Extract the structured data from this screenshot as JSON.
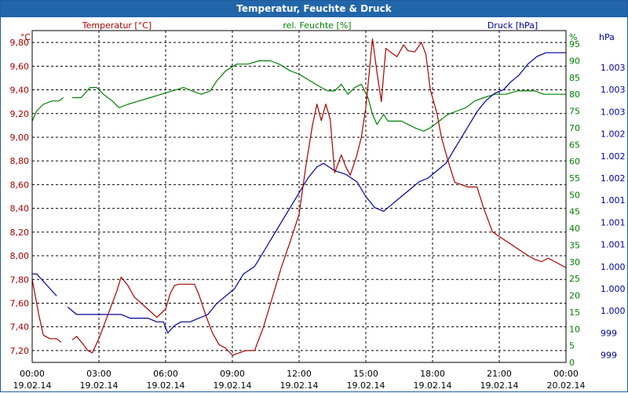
{
  "title": "Temperatur, Feuchte & Druck",
  "colors": {
    "title_bar": "#2266aa",
    "temperature": "#aa0000",
    "humidity": "#008000",
    "pressure": "#000099",
    "grid": "#000000"
  },
  "headers": {
    "temperature_series": "Temperatur [°C]",
    "humidity_series": "rel. Feuchte [%]",
    "pressure_series": "Druck [hPa]",
    "left_unit": "°C",
    "humidity_unit": "%",
    "pressure_unit": "hPa"
  },
  "chart_data": {
    "type": "line",
    "title": "Temperatur, Feuchte & Druck",
    "grid": true,
    "x_ticks": [
      {
        "time": "00:00",
        "date": "19.02.14"
      },
      {
        "time": "03:00",
        "date": "19.02.14"
      },
      {
        "time": "06:00",
        "date": "19.02.14"
      },
      {
        "time": "09:00",
        "date": "19.02.14"
      },
      {
        "time": "12:00",
        "date": "19.02.14"
      },
      {
        "time": "15:00",
        "date": "19.02.14"
      },
      {
        "time": "18:00",
        "date": "19.02.14"
      },
      {
        "time": "21:00",
        "date": "19.02.14"
      },
      {
        "time": "00:00",
        "date": "20.02.14"
      }
    ],
    "xlim_hours": [
      0,
      24
    ],
    "temperature": {
      "label": "Temperatur [°C]",
      "unit": "°C",
      "ylim": [
        7.1,
        9.9
      ],
      "ticks": [
        "7,20",
        "7,40",
        "7,60",
        "7,80",
        "8,00",
        "8,20",
        "8,40",
        "8,60",
        "8,80",
        "9,00",
        "9,20",
        "9,40",
        "9,60",
        "9,80"
      ],
      "tick_values": [
        7.2,
        7.4,
        7.6,
        7.8,
        8.0,
        8.2,
        8.4,
        8.6,
        8.8,
        9.0,
        9.2,
        9.4,
        9.6,
        9.8
      ],
      "segments": [
        [
          [
            0.0,
            7.8
          ],
          [
            0.3,
            7.5
          ],
          [
            0.5,
            7.33
          ],
          [
            0.8,
            7.3
          ],
          [
            1.1,
            7.3
          ],
          [
            1.3,
            7.27
          ]
        ],
        [
          [
            1.8,
            7.29
          ],
          [
            2.0,
            7.32
          ],
          [
            2.3,
            7.25
          ],
          [
            2.5,
            7.2
          ],
          [
            2.7,
            7.18
          ],
          [
            3.0,
            7.3
          ],
          [
            3.3,
            7.45
          ],
          [
            3.6,
            7.6
          ],
          [
            3.8,
            7.7
          ],
          [
            4.0,
            7.82
          ],
          [
            4.3,
            7.75
          ],
          [
            4.6,
            7.65
          ],
          [
            4.9,
            7.6
          ],
          [
            5.2,
            7.55
          ],
          [
            5.6,
            7.48
          ],
          [
            6.0,
            7.55
          ],
          [
            6.2,
            7.68
          ],
          [
            6.4,
            7.75
          ],
          [
            6.6,
            7.76
          ],
          [
            7.0,
            7.76
          ],
          [
            7.3,
            7.76
          ],
          [
            7.5,
            7.67
          ],
          [
            7.8,
            7.5
          ],
          [
            8.1,
            7.35
          ],
          [
            8.4,
            7.25
          ],
          [
            8.7,
            7.22
          ],
          [
            9.0,
            7.16
          ],
          [
            9.3,
            7.18
          ],
          [
            9.6,
            7.2
          ],
          [
            10.0,
            7.2
          ],
          [
            10.4,
            7.4
          ],
          [
            10.8,
            7.65
          ],
          [
            11.2,
            7.9
          ],
          [
            11.6,
            8.12
          ],
          [
            12.0,
            8.35
          ],
          [
            12.3,
            8.75
          ],
          [
            12.6,
            9.1
          ],
          [
            12.8,
            9.28
          ],
          [
            13.0,
            9.14
          ],
          [
            13.2,
            9.28
          ],
          [
            13.4,
            9.15
          ],
          [
            13.6,
            8.7
          ],
          [
            13.9,
            8.85
          ],
          [
            14.1,
            8.75
          ],
          [
            14.3,
            8.68
          ],
          [
            14.6,
            8.85
          ],
          [
            14.8,
            9.0
          ],
          [
            15.0,
            9.25
          ],
          [
            15.3,
            9.83
          ],
          [
            15.5,
            9.55
          ],
          [
            15.7,
            9.3
          ],
          [
            15.9,
            9.75
          ],
          [
            16.1,
            9.72
          ],
          [
            16.4,
            9.68
          ],
          [
            16.7,
            9.78
          ],
          [
            16.9,
            9.73
          ],
          [
            17.2,
            9.72
          ],
          [
            17.5,
            9.8
          ],
          [
            17.7,
            9.7
          ],
          [
            17.9,
            9.4
          ],
          [
            18.2,
            9.2
          ],
          [
            18.4,
            9.0
          ],
          [
            18.7,
            8.8
          ],
          [
            19.0,
            8.62
          ],
          [
            19.3,
            8.6
          ],
          [
            19.6,
            8.58
          ],
          [
            20.0,
            8.58
          ],
          [
            20.3,
            8.4
          ],
          [
            20.7,
            8.2
          ],
          [
            21.1,
            8.15
          ],
          [
            21.5,
            8.1
          ],
          [
            21.9,
            8.05
          ],
          [
            22.3,
            8.0
          ],
          [
            22.6,
            7.97
          ],
          [
            22.9,
            7.95
          ],
          [
            23.2,
            7.98
          ],
          [
            23.5,
            7.95
          ],
          [
            23.8,
            7.92
          ],
          [
            24.0,
            7.9
          ]
        ]
      ]
    },
    "humidity": {
      "label": "rel. Feuchte [%]",
      "unit": "%",
      "ylim": [
        0,
        99
      ],
      "ticks": [
        "0",
        "5",
        "10",
        "15",
        "20",
        "25",
        "30",
        "35",
        "40",
        "45",
        "50",
        "55",
        "60",
        "65",
        "70",
        "75",
        "80",
        "85",
        "90",
        "95"
      ],
      "tick_values": [
        0,
        5,
        10,
        15,
        20,
        25,
        30,
        35,
        40,
        45,
        50,
        55,
        60,
        65,
        70,
        75,
        80,
        85,
        90,
        95
      ],
      "segments": [
        [
          [
            0.0,
            72
          ],
          [
            0.2,
            75
          ],
          [
            0.5,
            77
          ],
          [
            0.9,
            78
          ],
          [
            1.2,
            78
          ],
          [
            1.4,
            79
          ]
        ],
        [
          [
            1.8,
            79
          ],
          [
            2.2,
            79
          ],
          [
            2.6,
            82
          ],
          [
            2.9,
            82
          ],
          [
            3.2,
            80
          ],
          [
            3.6,
            78
          ],
          [
            3.9,
            76
          ],
          [
            4.3,
            77
          ],
          [
            4.8,
            78
          ],
          [
            5.3,
            79
          ],
          [
            5.8,
            80
          ],
          [
            6.3,
            81
          ],
          [
            6.8,
            82
          ],
          [
            7.2,
            81
          ],
          [
            7.6,
            80
          ],
          [
            8.0,
            81
          ],
          [
            8.3,
            84
          ],
          [
            8.7,
            87
          ],
          [
            9.2,
            89
          ],
          [
            9.7,
            89
          ],
          [
            10.2,
            90
          ],
          [
            10.7,
            90
          ],
          [
            11.1,
            89
          ],
          [
            11.6,
            87
          ],
          [
            12.0,
            86
          ],
          [
            12.5,
            84
          ],
          [
            13.0,
            82
          ],
          [
            13.3,
            81
          ],
          [
            13.6,
            81
          ],
          [
            13.9,
            83
          ],
          [
            14.2,
            80
          ],
          [
            14.5,
            82
          ],
          [
            14.8,
            83
          ],
          [
            15.1,
            79
          ],
          [
            15.3,
            74
          ],
          [
            15.5,
            71
          ],
          [
            15.8,
            74
          ],
          [
            16.0,
            72
          ],
          [
            16.3,
            72
          ],
          [
            16.6,
            72
          ],
          [
            16.9,
            71
          ],
          [
            17.2,
            70
          ],
          [
            17.6,
            69
          ],
          [
            17.9,
            70
          ],
          [
            18.3,
            72
          ],
          [
            18.7,
            74
          ],
          [
            19.1,
            75
          ],
          [
            19.5,
            76
          ],
          [
            19.9,
            78
          ],
          [
            20.3,
            79
          ],
          [
            20.8,
            80
          ],
          [
            21.3,
            80
          ],
          [
            21.8,
            81
          ],
          [
            22.2,
            81
          ],
          [
            22.6,
            81
          ],
          [
            23.0,
            80
          ],
          [
            23.4,
            80
          ],
          [
            23.8,
            80
          ],
          [
            24.0,
            80
          ]
        ]
      ]
    },
    "pressure": {
      "label": "Druck [hPa]",
      "unit": "hPa",
      "ylim": [
        998.9,
        1003.4
      ],
      "ticks": [
        "999",
        "999",
        "1.000",
        "1.000",
        "1.000",
        "1.001",
        "1.001",
        "1.001",
        "1.002",
        "1.002",
        "1.002",
        "1.003",
        "1.003",
        "1.003"
      ],
      "tick_values": [
        999.0,
        999.3,
        999.6,
        999.9,
        1000.2,
        1000.5,
        1000.8,
        1001.1,
        1001.4,
        1001.7,
        1002.0,
        1002.3,
        1002.6,
        1002.9
      ],
      "segments": [
        [
          [
            0.0,
            1000.1
          ],
          [
            0.2,
            1000.1
          ],
          [
            0.5,
            1000.0
          ],
          [
            0.8,
            999.9
          ],
          [
            1.1,
            999.8
          ]
        ],
        [
          [
            1.6,
            999.65
          ],
          [
            2.0,
            999.55
          ],
          [
            2.4,
            999.55
          ],
          [
            2.8,
            999.55
          ],
          [
            3.2,
            999.55
          ],
          [
            3.6,
            999.55
          ],
          [
            4.0,
            999.55
          ],
          [
            4.4,
            999.5
          ],
          [
            4.8,
            999.5
          ],
          [
            5.2,
            999.5
          ],
          [
            5.6,
            999.45
          ],
          [
            5.9,
            999.45
          ],
          [
            6.1,
            999.3
          ],
          [
            6.4,
            999.4
          ],
          [
            6.7,
            999.45
          ],
          [
            7.1,
            999.45
          ],
          [
            7.5,
            999.5
          ],
          [
            7.9,
            999.55
          ],
          [
            8.3,
            999.7
          ],
          [
            8.7,
            999.8
          ],
          [
            9.1,
            999.9
          ],
          [
            9.5,
            1000.1
          ],
          [
            10.0,
            1000.2
          ],
          [
            10.4,
            1000.4
          ],
          [
            10.8,
            1000.6
          ],
          [
            11.2,
            1000.8
          ],
          [
            11.6,
            1001.0
          ],
          [
            12.0,
            1001.2
          ],
          [
            12.4,
            1001.4
          ],
          [
            12.8,
            1001.55
          ],
          [
            13.1,
            1001.6
          ],
          [
            13.6,
            1001.5
          ],
          [
            14.1,
            1001.45
          ],
          [
            14.6,
            1001.35
          ],
          [
            15.0,
            1001.15
          ],
          [
            15.4,
            1001.0
          ],
          [
            15.8,
            1000.95
          ],
          [
            16.2,
            1001.05
          ],
          [
            16.6,
            1001.15
          ],
          [
            17.0,
            1001.25
          ],
          [
            17.4,
            1001.35
          ],
          [
            17.8,
            1001.4
          ],
          [
            18.2,
            1001.5
          ],
          [
            18.6,
            1001.6
          ],
          [
            19.0,
            1001.8
          ],
          [
            19.5,
            1002.05
          ],
          [
            20.0,
            1002.3
          ],
          [
            20.4,
            1002.45
          ],
          [
            20.8,
            1002.55
          ],
          [
            21.2,
            1002.6
          ],
          [
            21.5,
            1002.7
          ],
          [
            21.9,
            1002.8
          ],
          [
            22.3,
            1002.95
          ],
          [
            22.7,
            1003.05
          ],
          [
            23.1,
            1003.1
          ],
          [
            23.5,
            1003.1
          ],
          [
            24.0,
            1003.1
          ]
        ]
      ]
    }
  }
}
